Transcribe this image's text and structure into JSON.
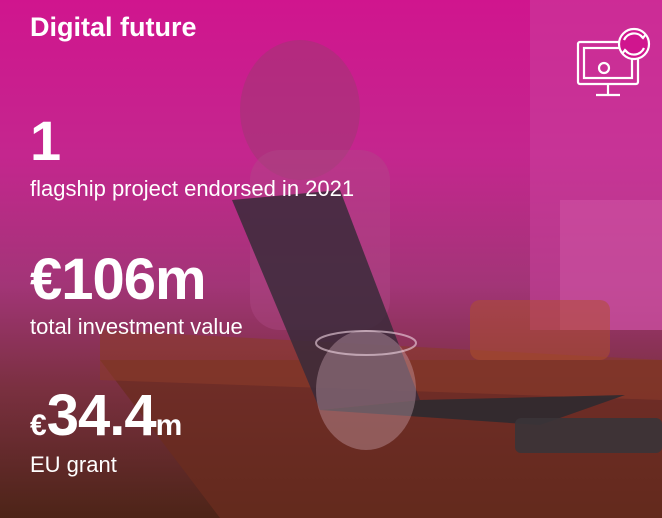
{
  "title": "Digital future",
  "stats": [
    {
      "value": "1",
      "label": "flagship project endorsed in 2021"
    },
    {
      "value": "€106m",
      "label": "total investment value"
    },
    {
      "prefix": "€",
      "value": "34.4",
      "suffix": "m",
      "label": "EU grant"
    }
  ]
}
